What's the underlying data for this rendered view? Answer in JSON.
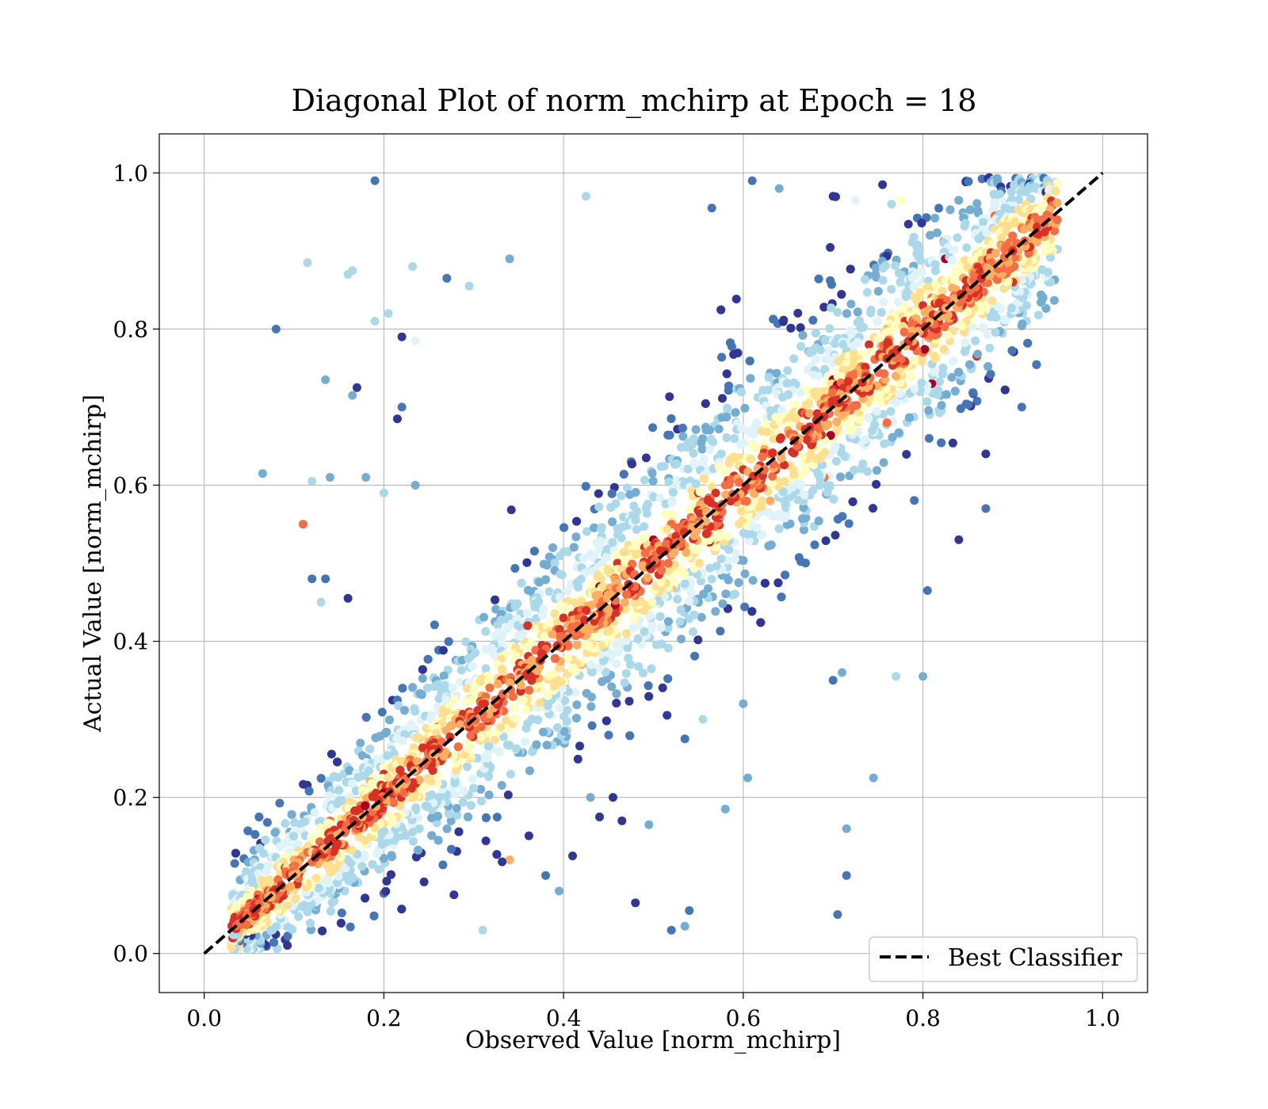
{
  "chart_data": {
    "type": "scatter",
    "title": "Diagonal Plot of norm_mchirp at Epoch = 18",
    "xlabel": "Observed Value [norm_mchirp]",
    "ylabel": "Actual Value [norm_mchirp]",
    "xlim": [
      -0.05,
      1.05
    ],
    "ylim": [
      -0.05,
      1.05
    ],
    "xticks": [
      0.0,
      0.2,
      0.4,
      0.6,
      0.8,
      1.0
    ],
    "yticks": [
      0.0,
      0.2,
      0.4,
      0.6,
      0.8,
      1.0
    ],
    "xtick_labels": [
      "0.0",
      "0.2",
      "0.4",
      "0.6",
      "0.8",
      "1.0"
    ],
    "ytick_labels": [
      "0.0",
      "0.2",
      "0.4",
      "0.6",
      "0.8",
      "1.0"
    ],
    "grid": true,
    "legend": {
      "position": "lower-right",
      "entries": [
        {
          "label": "Best Classifier",
          "style": "dashed",
          "color": "#000000"
        }
      ]
    },
    "reference_line": {
      "label": "Best Classifier",
      "from": [
        0.0,
        0.0
      ],
      "to": [
        1.0,
        1.0
      ]
    },
    "colormap": [
      "#313695",
      "#4575b4",
      "#74add1",
      "#abd9e9",
      "#e0f3f8",
      "#ffffbf",
      "#fee090",
      "#fdae61",
      "#f46d43",
      "#d73027",
      "#a50026"
    ],
    "points": [
      [
        0.19,
        0.99,
        1
      ],
      [
        0.08,
        0.8,
        1
      ],
      [
        0.115,
        0.885,
        3
      ],
      [
        0.16,
        0.87,
        3
      ],
      [
        0.165,
        0.875,
        3
      ],
      [
        0.232,
        0.88,
        3
      ],
      [
        0.425,
        0.97,
        3
      ],
      [
        0.27,
        0.865,
        1
      ],
      [
        0.295,
        0.855,
        3
      ],
      [
        0.34,
        0.89,
        2
      ],
      [
        0.065,
        0.615,
        2
      ],
      [
        0.11,
        0.55,
        8
      ],
      [
        0.12,
        0.605,
        3
      ],
      [
        0.14,
        0.61,
        2
      ],
      [
        0.135,
        0.735,
        2
      ],
      [
        0.17,
        0.725,
        0
      ],
      [
        0.165,
        0.715,
        2
      ],
      [
        0.22,
        0.79,
        0
      ],
      [
        0.235,
        0.785,
        4
      ],
      [
        0.19,
        0.81,
        3
      ],
      [
        0.205,
        0.82,
        3
      ],
      [
        0.12,
        0.48,
        1
      ],
      [
        0.135,
        0.48,
        1
      ],
      [
        0.13,
        0.45,
        3
      ],
      [
        0.16,
        0.455,
        0
      ],
      [
        0.18,
        0.61,
        2
      ],
      [
        0.2,
        0.59,
        3
      ],
      [
        0.235,
        0.6,
        2
      ],
      [
        0.215,
        0.685,
        0
      ],
      [
        0.22,
        0.7,
        1
      ],
      [
        0.48,
        0.065,
        0
      ],
      [
        0.52,
        0.03,
        1
      ],
      [
        0.535,
        0.035,
        2
      ],
      [
        0.54,
        0.055,
        1
      ],
      [
        0.535,
        0.275,
        1
      ],
      [
        0.705,
        0.05,
        1
      ],
      [
        0.715,
        0.1,
        1
      ],
      [
        0.715,
        0.16,
        2
      ],
      [
        0.745,
        0.225,
        2
      ],
      [
        0.605,
        0.225,
        2
      ],
      [
        0.58,
        0.185,
        2
      ],
      [
        0.555,
        0.3,
        3
      ],
      [
        0.6,
        0.32,
        2
      ],
      [
        0.7,
        0.35,
        1
      ],
      [
        0.71,
        0.36,
        2
      ],
      [
        0.77,
        0.355,
        3
      ],
      [
        0.8,
        0.355,
        2
      ],
      [
        0.805,
        0.465,
        1
      ],
      [
        0.84,
        0.53,
        0
      ],
      [
        0.87,
        0.57,
        1
      ],
      [
        0.44,
        0.175,
        0
      ],
      [
        0.465,
        0.17,
        0
      ],
      [
        0.455,
        0.2,
        0
      ],
      [
        0.495,
        0.165,
        2
      ],
      [
        0.41,
        0.125,
        0
      ],
      [
        0.395,
        0.08,
        2
      ],
      [
        0.38,
        0.1,
        1
      ],
      [
        0.43,
        0.2,
        2
      ],
      [
        0.34,
        0.12,
        7
      ],
      [
        0.31,
        0.03,
        3
      ],
      [
        0.565,
        0.955,
        1
      ],
      [
        0.61,
        0.99,
        1
      ],
      [
        0.64,
        0.98,
        2
      ],
      [
        0.7,
        0.97,
        0
      ],
      [
        0.725,
        0.965,
        4
      ],
      [
        0.755,
        0.985,
        0
      ],
      [
        0.765,
        0.96,
        3
      ],
      [
        0.775,
        0.965,
        5
      ],
      [
        0.825,
        0.89,
        10
      ],
      [
        0.83,
        0.81,
        9
      ],
      [
        0.9,
        0.86,
        9
      ],
      [
        0.86,
        0.765,
        9
      ],
      [
        0.88,
        0.945,
        8
      ],
      [
        0.91,
        0.7,
        1
      ],
      [
        0.87,
        0.64,
        0
      ],
      [
        0.045,
        0.06,
        5
      ],
      [
        0.06,
        0.075,
        9
      ],
      [
        0.09,
        0.11,
        9
      ],
      [
        0.1,
        0.12,
        7
      ],
      [
        0.12,
        0.13,
        6
      ],
      [
        0.14,
        0.17,
        8
      ],
      [
        0.16,
        0.19,
        6
      ],
      [
        0.185,
        0.22,
        7
      ],
      [
        0.2,
        0.23,
        9
      ],
      [
        0.21,
        0.24,
        6
      ],
      [
        0.245,
        0.27,
        8
      ],
      [
        0.26,
        0.29,
        9
      ],
      [
        0.28,
        0.3,
        7
      ],
      [
        0.31,
        0.32,
        9
      ],
      [
        0.33,
        0.35,
        8
      ],
      [
        0.36,
        0.42,
        9
      ],
      [
        0.4,
        0.43,
        9
      ],
      [
        0.42,
        0.44,
        8
      ],
      [
        0.44,
        0.47,
        10
      ],
      [
        0.46,
        0.5,
        9
      ],
      [
        0.49,
        0.52,
        9
      ],
      [
        0.5,
        0.53,
        10
      ],
      [
        0.52,
        0.55,
        8
      ],
      [
        0.55,
        0.59,
        9
      ],
      [
        0.58,
        0.6,
        8
      ],
      [
        0.6,
        0.62,
        9
      ],
      [
        0.63,
        0.64,
        8
      ],
      [
        0.65,
        0.67,
        7
      ],
      [
        0.69,
        0.7,
        9
      ],
      [
        0.7,
        0.735,
        10
      ],
      [
        0.72,
        0.74,
        8
      ],
      [
        0.74,
        0.78,
        9
      ],
      [
        0.76,
        0.8,
        7
      ],
      [
        0.78,
        0.81,
        9
      ],
      [
        0.8,
        0.83,
        9
      ],
      [
        0.81,
        0.84,
        8
      ],
      [
        0.85,
        0.84,
        9
      ],
      [
        0.87,
        0.88,
        8
      ],
      [
        0.9,
        0.9,
        9
      ],
      [
        0.92,
        0.93,
        7
      ],
      [
        0.25,
        0.26,
        9
      ],
      [
        0.27,
        0.255,
        8
      ],
      [
        0.3,
        0.3,
        8
      ],
      [
        0.35,
        0.36,
        7
      ],
      [
        0.38,
        0.39,
        8
      ],
      [
        0.45,
        0.44,
        7
      ],
      [
        0.47,
        0.46,
        8
      ],
      [
        0.52,
        0.51,
        8
      ],
      [
        0.56,
        0.58,
        7
      ],
      [
        0.62,
        0.61,
        8
      ],
      [
        0.66,
        0.65,
        8
      ],
      [
        0.71,
        0.69,
        7
      ],
      [
        0.73,
        0.72,
        8
      ],
      [
        0.77,
        0.74,
        7
      ],
      [
        0.8,
        0.77,
        8
      ],
      [
        0.81,
        0.73,
        10
      ],
      [
        0.76,
        0.68,
        8
      ],
      [
        0.69,
        0.61,
        8
      ],
      [
        0.63,
        0.58,
        7
      ],
      [
        0.57,
        0.53,
        7
      ],
      [
        0.52,
        0.47,
        7
      ],
      [
        0.47,
        0.41,
        6
      ],
      [
        0.42,
        0.37,
        7
      ],
      [
        0.37,
        0.34,
        6
      ],
      [
        0.33,
        0.29,
        6
      ]
    ]
  }
}
